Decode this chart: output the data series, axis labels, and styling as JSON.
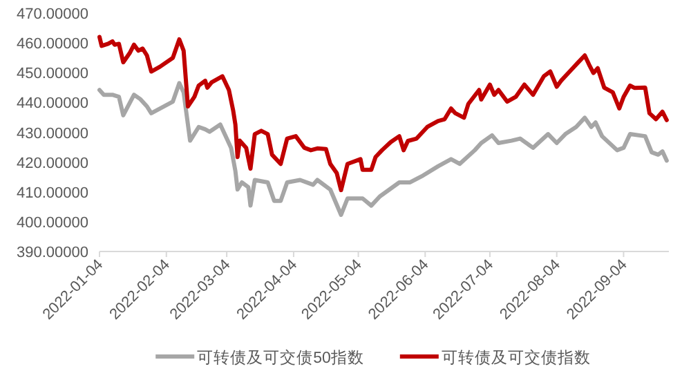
{
  "chart_data": {
    "type": "line",
    "xlim": [
      "2022-01-04",
      "2022-09-25"
    ],
    "xticks": [
      "2022-01-04",
      "2022-02-04",
      "2022-03-04",
      "2022-04-04",
      "2022-05-04",
      "2022-06-04",
      "2022-07-04",
      "2022-08-04",
      "2022-09-04"
    ],
    "ylim": [
      390,
      470
    ],
    "yticks": [
      {
        "value": 390,
        "label": "390.00000"
      },
      {
        "value": 400,
        "label": "400.00000"
      },
      {
        "value": 410,
        "label": "410.00000"
      },
      {
        "value": 420,
        "label": "420.00000"
      },
      {
        "value": 430,
        "label": "430.00000"
      },
      {
        "value": 440,
        "label": "440.00000"
      },
      {
        "value": 450,
        "label": "450.00000"
      },
      {
        "value": 460,
        "label": "460.00000"
      },
      {
        "value": 470,
        "label": "470.00000"
      }
    ],
    "grid": false,
    "legend": "bottom",
    "marker": "none",
    "line_style": "solid",
    "series": [
      {
        "name": "可转债及可交债50指数",
        "color": "#a6a6a6",
        "x": [
          "2022-01-04",
          "2022-01-06",
          "2022-01-10",
          "2022-01-13",
          "2022-01-15",
          "2022-01-20",
          "2022-01-23",
          "2022-01-26",
          "2022-01-28",
          "2022-02-07",
          "2022-02-10",
          "2022-02-12",
          "2022-02-15",
          "2022-02-19",
          "2022-02-22",
          "2022-02-24",
          "2022-03-01",
          "2022-03-06",
          "2022-03-08",
          "2022-03-09",
          "2022-03-11",
          "2022-03-14",
          "2022-03-15",
          "2022-03-17",
          "2022-03-23",
          "2022-03-26",
          "2022-03-29",
          "2022-04-01",
          "2022-04-07",
          "2022-04-13",
          "2022-04-15",
          "2022-04-21",
          "2022-04-26",
          "2022-04-29",
          "2022-05-06",
          "2022-05-10",
          "2022-05-14",
          "2022-05-23",
          "2022-05-28",
          "2022-06-03",
          "2022-06-10",
          "2022-06-16",
          "2022-06-20",
          "2022-06-27",
          "2022-06-30",
          "2022-07-05",
          "2022-07-08",
          "2022-07-14",
          "2022-07-18",
          "2022-07-24",
          "2022-07-31",
          "2022-08-04",
          "2022-08-08",
          "2022-08-13",
          "2022-08-17",
          "2022-08-20",
          "2022-08-22",
          "2022-08-25",
          "2022-09-01",
          "2022-09-04",
          "2022-09-07",
          "2022-09-14",
          "2022-09-17",
          "2022-09-20",
          "2022-09-22",
          "2022-09-24"
        ],
        "values": [
          444.2,
          442.6,
          442.6,
          441.9,
          435.7,
          442.6,
          441.1,
          438.7,
          436.4,
          440.3,
          446.5,
          443.4,
          427.2,
          431.8,
          431,
          430.2,
          432.6,
          424.8,
          417,
          410.8,
          413.2,
          411.6,
          405.4,
          414,
          413.2,
          407,
          407,
          413.2,
          414,
          412.4,
          414,
          410.8,
          402.3,
          407.8,
          407.8,
          405.4,
          408.5,
          413.2,
          413.2,
          415.5,
          418.6,
          421,
          419.4,
          424,
          426.4,
          429,
          426.4,
          427.2,
          427.9,
          424.8,
          429.4,
          426.4,
          429.4,
          431.8,
          434.9,
          431.8,
          433.3,
          428.7,
          424,
          424.8,
          429.4,
          428.7,
          423.3,
          422.5,
          423.6,
          420.5
        ]
      },
      {
        "name": "可转债及可交债指数",
        "color": "#c00000",
        "x": [
          "2022-01-04",
          "2022-01-05",
          "2022-01-08",
          "2022-01-10",
          "2022-01-11",
          "2022-01-13",
          "2022-01-15",
          "2022-01-18",
          "2022-01-20",
          "2022-01-22",
          "2022-01-24",
          "2022-01-26",
          "2022-01-28",
          "2022-02-01",
          "2022-02-07",
          "2022-02-10",
          "2022-02-12",
          "2022-02-14",
          "2022-02-17",
          "2022-02-19",
          "2022-02-22",
          "2022-02-23",
          "2022-02-25",
          "2022-03-02",
          "2022-03-05",
          "2022-03-07",
          "2022-03-08",
          "2022-03-09",
          "2022-03-10",
          "2022-03-13",
          "2022-03-15",
          "2022-03-17",
          "2022-03-20",
          "2022-03-23",
          "2022-03-25",
          "2022-03-29",
          "2022-04-01",
          "2022-04-05",
          "2022-04-09",
          "2022-04-12",
          "2022-04-15",
          "2022-04-19",
          "2022-04-21",
          "2022-04-24",
          "2022-04-26",
          "2022-04-29",
          "2022-05-05",
          "2022-05-06",
          "2022-05-10",
          "2022-05-12",
          "2022-05-15",
          "2022-05-19",
          "2022-05-23",
          "2022-05-25",
          "2022-05-27",
          "2022-05-31",
          "2022-06-05",
          "2022-06-10",
          "2022-06-13",
          "2022-06-16",
          "2022-06-18",
          "2022-06-22",
          "2022-06-24",
          "2022-06-29",
          "2022-06-30",
          "2022-07-04",
          "2022-07-06",
          "2022-07-08",
          "2022-07-12",
          "2022-07-16",
          "2022-07-20",
          "2022-07-24",
          "2022-07-29",
          "2022-08-01",
          "2022-08-04",
          "2022-08-06",
          "2022-08-10",
          "2022-08-14",
          "2022-08-17",
          "2022-08-19",
          "2022-08-21",
          "2022-08-23",
          "2022-08-26",
          "2022-08-30",
          "2022-09-02",
          "2022-09-04",
          "2022-09-07",
          "2022-09-09",
          "2022-09-14",
          "2022-09-16",
          "2022-09-19",
          "2022-09-22",
          "2022-09-24"
        ],
        "values": [
          462,
          459,
          459.7,
          460.5,
          459.4,
          459.7,
          453.5,
          456.6,
          459.4,
          457.4,
          458.1,
          455.8,
          450.4,
          452,
          455,
          461.2,
          457.4,
          438.7,
          441.9,
          445.7,
          447.3,
          445,
          446.8,
          448.8,
          444.2,
          437.2,
          432.6,
          421.7,
          427.2,
          424.8,
          417.8,
          429.4,
          430.5,
          429.4,
          422.5,
          419.4,
          427.9,
          428.7,
          424.8,
          424,
          424.6,
          424.4,
          419.4,
          416.3,
          410.6,
          419.4,
          421,
          417.4,
          417.4,
          421.7,
          424,
          426.7,
          428.7,
          424,
          427.1,
          427.9,
          431.8,
          433.8,
          434.4,
          438,
          436.4,
          434.9,
          439.5,
          444.2,
          441,
          446,
          442.6,
          444.2,
          440.3,
          441.9,
          446,
          442.6,
          448.8,
          450.4,
          445.3,
          447.3,
          450.4,
          453.5,
          455.8,
          452.7,
          449.9,
          451.5,
          445,
          443.4,
          438,
          441.9,
          445.7,
          444.9,
          445,
          436.4,
          434.4,
          436.9,
          434.1
        ]
      }
    ]
  }
}
